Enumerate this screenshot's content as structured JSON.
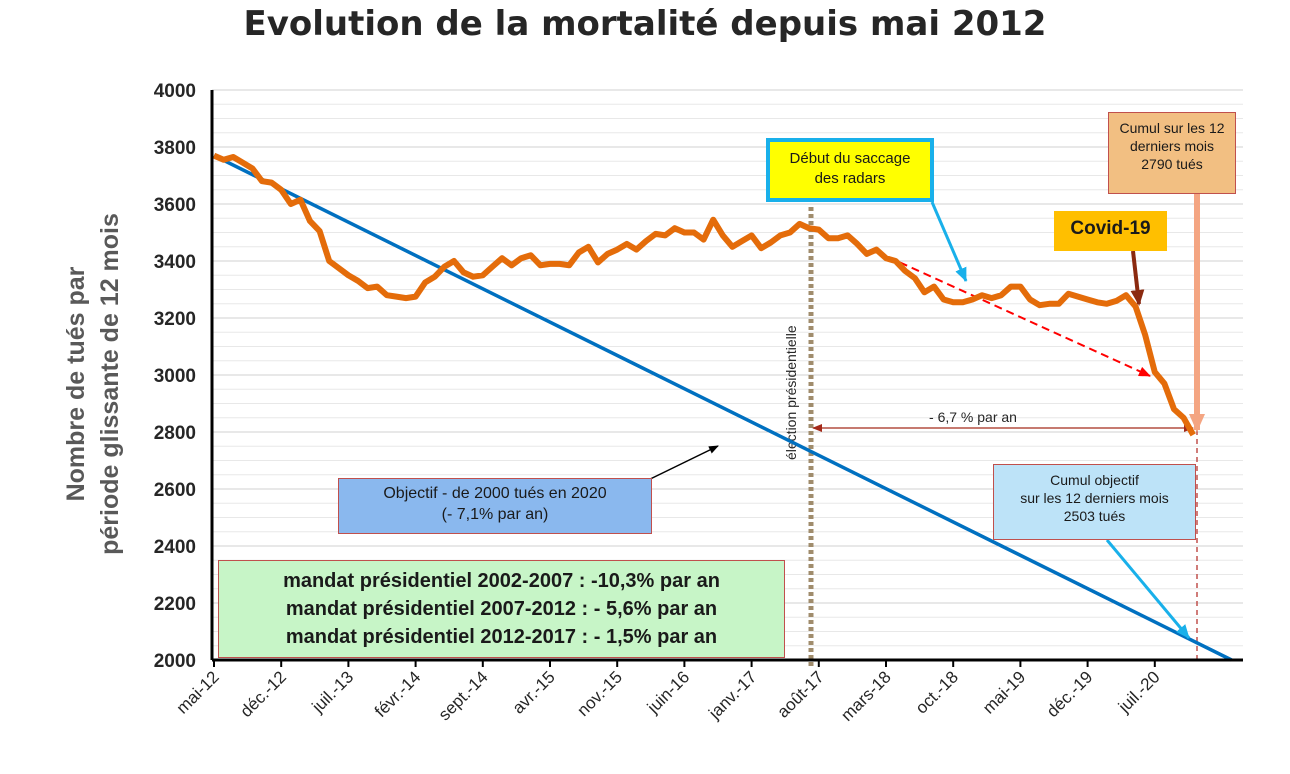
{
  "chart_data": {
    "type": "line",
    "title": "Evolution de la mortalité depuis mai 2012",
    "ylabel_line1": "Nombre de tués par",
    "ylabel_line2": "période  glissante de 12 mois",
    "ylim": [
      2000,
      4000
    ],
    "yticks": [
      "4000",
      "3800",
      "3600",
      "3400",
      "3200",
      "3000",
      "2800",
      "2600",
      "2400",
      "2200",
      "2000"
    ],
    "xtick_labels": [
      "mai-12",
      "déc.-12",
      "juil.-13",
      "févr.-14",
      "sept.-14",
      "avr.-15",
      "nov.-15",
      "juin-16",
      "janv.-17",
      "août-17",
      "mars-18",
      "oct.-18",
      "mai-19",
      "déc.-19",
      "juil.-20"
    ],
    "grid": true,
    "x_start": "mai-12",
    "series": [
      {
        "color": "#e46c0a",
        "values": [
          3770,
          3755,
          3765,
          3745,
          3725,
          3680,
          3675,
          3650,
          3600,
          3615,
          3540,
          3505,
          3400,
          3375,
          3350,
          3330,
          3305,
          3310,
          3280,
          3275,
          3270,
          3275,
          3325,
          3345,
          3380,
          3400,
          3360,
          3345,
          3350,
          3380,
          3410,
          3385,
          3410,
          3420,
          3385,
          3390,
          3390,
          3385,
          3430,
          3450,
          3395,
          3425,
          3440,
          3460,
          3440,
          3470,
          3495,
          3490,
          3515,
          3500,
          3500,
          3475,
          3545,
          3490,
          3450,
          3470,
          3490,
          3445,
          3465,
          3490,
          3500,
          3530,
          3515,
          3510,
          3480,
          3480,
          3490,
          3460,
          3425,
          3440,
          3410,
          3400,
          3365,
          3340,
          3290,
          3310,
          3265,
          3255,
          3255,
          3265,
          3280,
          3270,
          3280,
          3310,
          3310,
          3265,
          3245,
          3250,
          3250,
          3285,
          3275,
          3265,
          3255,
          3250,
          3260,
          3280,
          3240,
          3140,
          3010,
          2970,
          2880,
          2850,
          2790
        ]
      },
      {
        "color": "#0070c0",
        "values": [
          3770,
          2000
        ],
        "x_end": "mars-21"
      }
    ],
    "annotations": {
      "objectif": [
        "Objectif - de 2000 tués en 2020",
        "(- 7,1% par an)"
      ],
      "mandats": [
        "mandat présidentiel 2002-2007 : -10,3% par an",
        "mandat présidentiel 2007-2012 : - 5,6% par an",
        "mandat présidentiel 2012-2017 : - 1,5% par an"
      ],
      "saccage": [
        "Début du saccage",
        "des radars"
      ],
      "cumul12": [
        "Cumul sur les 12",
        "derniers mois",
        "2790 tués"
      ],
      "covid": "Covid-19",
      "objcumul": [
        "Cumul objectif",
        "sur les 12 derniers mois",
        "2503 tués"
      ],
      "election": "élection présidentielle",
      "rate": "- 6,7 % par an"
    }
  }
}
